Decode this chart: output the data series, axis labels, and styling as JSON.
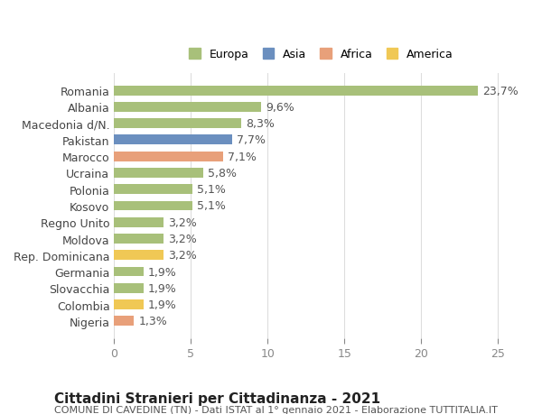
{
  "categories": [
    "Romania",
    "Albania",
    "Macedonia d/N.",
    "Pakistan",
    "Marocco",
    "Ucraina",
    "Polonia",
    "Kosovo",
    "Regno Unito",
    "Moldova",
    "Rep. Dominicana",
    "Germania",
    "Slovacchia",
    "Colombia",
    "Nigeria"
  ],
  "values": [
    23.7,
    9.6,
    8.3,
    7.7,
    7.1,
    5.8,
    5.1,
    5.1,
    3.2,
    3.2,
    3.2,
    1.9,
    1.9,
    1.9,
    1.3
  ],
  "labels": [
    "23,7%",
    "9,6%",
    "8,3%",
    "7,7%",
    "7,1%",
    "5,8%",
    "5,1%",
    "5,1%",
    "3,2%",
    "3,2%",
    "3,2%",
    "1,9%",
    "1,9%",
    "1,9%",
    "1,3%"
  ],
  "colors": [
    "#a8c07a",
    "#a8c07a",
    "#a8c07a",
    "#6b8fbf",
    "#e8a07a",
    "#a8c07a",
    "#a8c07a",
    "#a8c07a",
    "#a8c07a",
    "#a8c07a",
    "#f0c855",
    "#a8c07a",
    "#a8c07a",
    "#f0c855",
    "#e8a07a"
  ],
  "legend": [
    {
      "label": "Europa",
      "color": "#a8c07a"
    },
    {
      "label": "Asia",
      "color": "#6b8fbf"
    },
    {
      "label": "Africa",
      "color": "#e8a07a"
    },
    {
      "label": "America",
      "color": "#f0c855"
    }
  ],
  "xlim": [
    0,
    27
  ],
  "xticks": [
    0,
    5,
    10,
    15,
    20,
    25
  ],
  "title": "Cittadini Stranieri per Cittadinanza - 2021",
  "subtitle": "COMUNE DI CAVEDINE (TN) - Dati ISTAT al 1° gennaio 2021 - Elaborazione TUTTITALIA.IT",
  "bg_color": "#ffffff",
  "grid_color": "#dddddd",
  "label_fontsize": 9,
  "value_fontsize": 9,
  "title_fontsize": 11,
  "subtitle_fontsize": 8
}
